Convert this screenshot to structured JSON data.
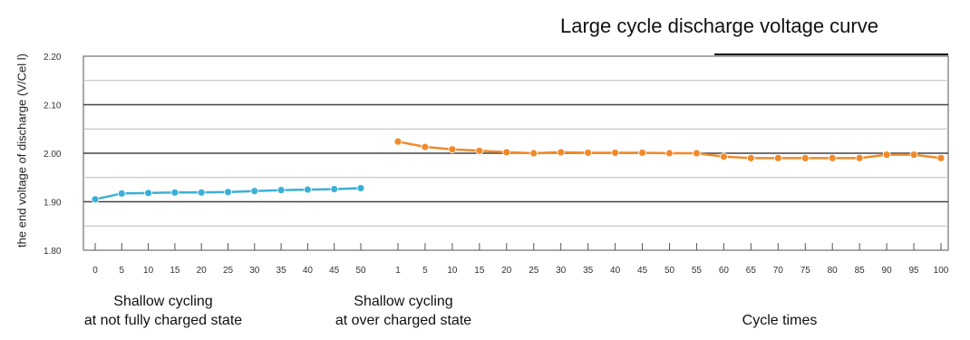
{
  "chart_data": {
    "type": "line",
    "title": "Large cycle discharge voltage curve",
    "ylabel": "the end voltage of discharge (V/Cel l)",
    "xlabel": "Cycle times",
    "ylim": [
      1.8,
      2.2
    ],
    "yticks": [
      "2.20",
      "2.10",
      "2.00",
      "1.90",
      "1.80"
    ],
    "grid": true,
    "colors": {
      "series1": "#3bb0d6",
      "series2": "#f08a2a"
    },
    "segments": [
      {
        "caption": [
          "Shallow cycling",
          "at not fully charged state"
        ],
        "x": [
          "0",
          "5",
          "10",
          "15",
          "20",
          "25",
          "30",
          "35",
          "40",
          "45",
          "50"
        ],
        "values": [
          1.905,
          1.917,
          1.918,
          1.919,
          1.919,
          1.92,
          1.922,
          1.924,
          1.925,
          1.926,
          1.928
        ]
      },
      {
        "caption": [
          "Shallow cycling",
          "at over charged state"
        ],
        "x": [
          "1",
          "5",
          "10",
          "15",
          "20",
          "25",
          "30",
          "35",
          "40",
          "45",
          "50",
          "55",
          "60",
          "65",
          "70",
          "75",
          "80",
          "85",
          "90",
          "95",
          "100"
        ],
        "values": [
          2.024,
          2.013,
          2.008,
          2.005,
          2.002,
          2.0,
          2.002,
          2.001,
          2.001,
          2.001,
          2.0,
          2.0,
          1.993,
          1.99,
          1.99,
          1.99,
          1.99,
          1.99,
          1.997,
          1.997,
          1.99
        ]
      }
    ]
  }
}
